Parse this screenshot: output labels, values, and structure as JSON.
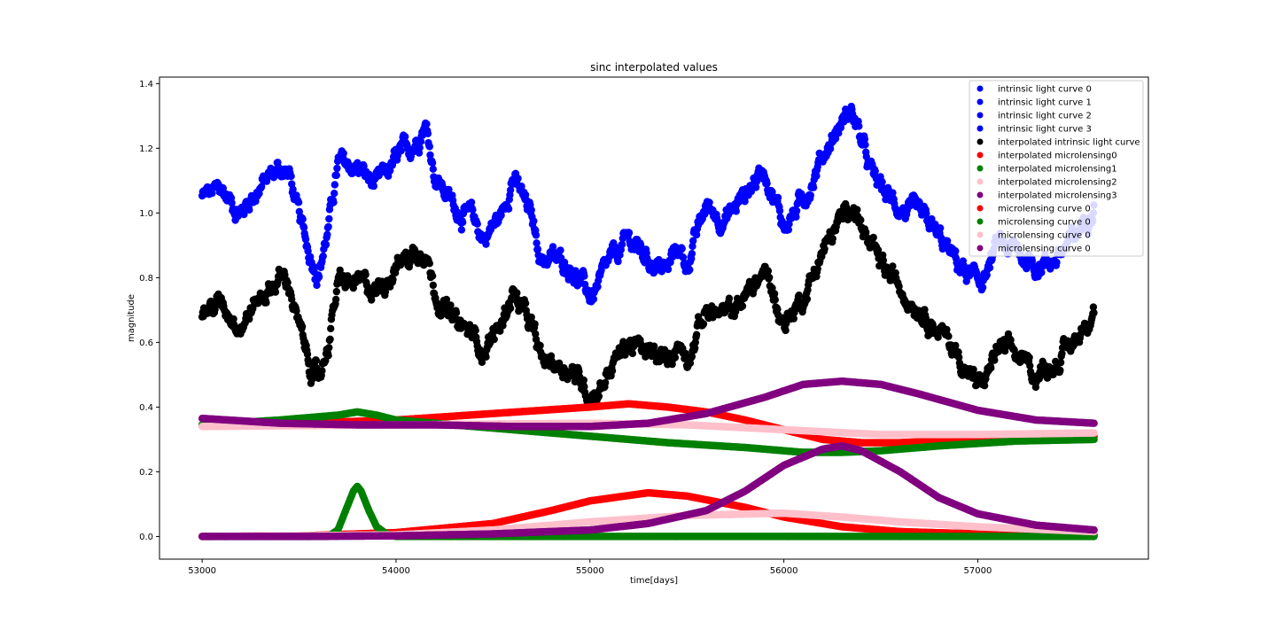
{
  "chart_data": {
    "type": "scatter",
    "title": "sinc interpolated values",
    "xlabel": "time[days]",
    "ylabel": "magnitude",
    "xlim": [
      52780,
      57880
    ],
    "ylim": [
      -0.07,
      1.42
    ],
    "xticks": [
      53000,
      54000,
      55000,
      56000,
      57000
    ],
    "yticks": [
      0.0,
      0.2,
      0.4,
      0.6,
      0.8,
      1.0,
      1.2,
      1.4
    ],
    "ytick_labels": [
      "0.0",
      "0.2",
      "0.4",
      "0.6",
      "0.8",
      "1.0",
      "1.2",
      "1.4"
    ],
    "grid": false,
    "legend_position": "top-right",
    "series": [
      {
        "name": "intrinsic light curve 0",
        "color": "#0000ff",
        "kind": "noisy",
        "x": [
          53000,
          53100,
          53200,
          53250,
          53300,
          53400,
          53450,
          53500,
          53550,
          53600,
          53650,
          53700,
          53800,
          53900,
          54000,
          54100,
          54150,
          54200,
          54300,
          54400,
          54450,
          54550,
          54600,
          54700,
          54750,
          54800,
          54900,
          55000,
          55050,
          55100,
          55200,
          55300,
          55400,
          55450,
          55500,
          55600,
          55700,
          55800,
          55900,
          56000,
          56100,
          56200,
          56300,
          56350,
          56450,
          56550,
          56650,
          56750,
          56850,
          56900,
          57000,
          57050,
          57100,
          57200,
          57300,
          57400,
          57500,
          57600
        ],
        "y": [
          1.05,
          1.07,
          1.0,
          1.05,
          1.08,
          1.14,
          1.12,
          0.98,
          0.88,
          0.82,
          0.95,
          1.15,
          1.14,
          1.08,
          1.16,
          1.22,
          1.29,
          1.12,
          1.02,
          0.98,
          0.92,
          1.0,
          1.12,
          0.98,
          0.86,
          0.86,
          0.84,
          0.74,
          0.78,
          0.84,
          0.92,
          0.86,
          0.82,
          0.9,
          0.84,
          1.02,
          0.98,
          1.06,
          1.14,
          0.96,
          1.04,
          1.18,
          1.28,
          1.32,
          1.12,
          1.04,
          1.0,
          0.96,
          0.88,
          0.84,
          0.78,
          0.82,
          0.9,
          0.88,
          0.84,
          0.86,
          0.92,
          1.04
        ]
      },
      {
        "name": "intrinsic light curve 1",
        "color": "#0000ff",
        "kind": "none",
        "x": [],
        "y": []
      },
      {
        "name": "intrinsic light curve 2",
        "color": "#0000ff",
        "kind": "none",
        "x": [],
        "y": []
      },
      {
        "name": "intrinsic light curve 3",
        "color": "#0000ff",
        "kind": "none",
        "x": [],
        "y": []
      },
      {
        "name": "interpolated intrinsic light curve",
        "color": "#000000",
        "kind": "noisy",
        "x": [
          53000,
          53100,
          53200,
          53250,
          53300,
          53400,
          53450,
          53500,
          53550,
          53600,
          53650,
          53700,
          53800,
          53900,
          54000,
          54100,
          54150,
          54200,
          54300,
          54400,
          54450,
          54550,
          54600,
          54700,
          54750,
          54800,
          54900,
          55000,
          55050,
          55100,
          55200,
          55300,
          55400,
          55450,
          55500,
          55600,
          55700,
          55800,
          55900,
          56000,
          56100,
          56200,
          56300,
          56350,
          56450,
          56550,
          56650,
          56750,
          56850,
          56900,
          57000,
          57050,
          57100,
          57200,
          57300,
          57400,
          57500,
          57600
        ],
        "y": [
          0.7,
          0.72,
          0.66,
          0.7,
          0.74,
          0.8,
          0.78,
          0.64,
          0.54,
          0.48,
          0.6,
          0.78,
          0.78,
          0.76,
          0.84,
          0.88,
          0.9,
          0.76,
          0.66,
          0.62,
          0.58,
          0.66,
          0.76,
          0.64,
          0.54,
          0.54,
          0.52,
          0.44,
          0.46,
          0.52,
          0.6,
          0.56,
          0.54,
          0.6,
          0.56,
          0.7,
          0.68,
          0.74,
          0.82,
          0.66,
          0.74,
          0.88,
          0.98,
          1.04,
          0.88,
          0.8,
          0.74,
          0.68,
          0.6,
          0.56,
          0.46,
          0.5,
          0.58,
          0.56,
          0.5,
          0.54,
          0.6,
          0.72
        ]
      },
      {
        "name": "interpolated microlensing0",
        "color": "#ff0000",
        "kind": "smooth",
        "x": [
          53000,
          53500,
          54000,
          54500,
          55000,
          55200,
          55400,
          55600,
          55800,
          56000,
          56200,
          56400,
          56600,
          57000,
          57600
        ],
        "y": [
          0.345,
          0.35,
          0.36,
          0.38,
          0.4,
          0.41,
          0.4,
          0.385,
          0.36,
          0.33,
          0.3,
          0.29,
          0.29,
          0.3,
          0.31
        ]
      },
      {
        "name": "interpolated microlensing1",
        "color": "#008000",
        "kind": "smooth",
        "x": [
          53000,
          53400,
          53700,
          53800,
          53900,
          54000,
          54300,
          54600,
          55000,
          55400,
          55800,
          56100,
          56300,
          56500,
          56800,
          57200,
          57600
        ],
        "y": [
          0.345,
          0.36,
          0.375,
          0.385,
          0.375,
          0.36,
          0.345,
          0.33,
          0.31,
          0.29,
          0.275,
          0.26,
          0.26,
          0.265,
          0.28,
          0.295,
          0.3
        ]
      },
      {
        "name": "interpolated microlensing2",
        "color": "#ffc0cb",
        "kind": "smooth",
        "x": [
          53000,
          54000,
          55000,
          55500,
          56000,
          56500,
          57000,
          57600
        ],
        "y": [
          0.34,
          0.345,
          0.35,
          0.345,
          0.33,
          0.315,
          0.315,
          0.32
        ]
      },
      {
        "name": "interpolated microlensing3",
        "color": "#800080",
        "kind": "smooth",
        "x": [
          53000,
          53400,
          53800,
          54200,
          54600,
          55000,
          55300,
          55600,
          55900,
          56100,
          56300,
          56500,
          56700,
          57000,
          57300,
          57600
        ],
        "y": [
          0.365,
          0.35,
          0.345,
          0.345,
          0.34,
          0.34,
          0.35,
          0.38,
          0.43,
          0.47,
          0.48,
          0.47,
          0.44,
          0.39,
          0.36,
          0.35
        ]
      },
      {
        "name": "microlensing curve 0",
        "color": "#ff0000",
        "kind": "smooth",
        "x": [
          53000,
          53500,
          54000,
          54500,
          54800,
          55000,
          55300,
          55500,
          55800,
          56000,
          56300,
          56600,
          57000,
          57600
        ],
        "y": [
          0.0,
          0.002,
          0.012,
          0.04,
          0.08,
          0.11,
          0.135,
          0.125,
          0.09,
          0.06,
          0.03,
          0.015,
          0.008,
          0.005
        ]
      },
      {
        "name": "microlensing curve 0",
        "color": "#008000",
        "kind": "smooth",
        "x": [
          53000,
          53650,
          53700,
          53740,
          53780,
          53800,
          53820,
          53860,
          53900,
          53950,
          54000,
          54500,
          55000,
          56000,
          57000,
          57600
        ],
        "y": [
          0.0,
          0.0,
          0.02,
          0.08,
          0.14,
          0.155,
          0.14,
          0.08,
          0.03,
          0.008,
          0.0,
          0.0,
          0.0,
          0.0,
          0.0,
          0.0
        ]
      },
      {
        "name": "microlensing curve 0",
        "color": "#ffc0cb",
        "kind": "smooth",
        "x": [
          53000,
          54000,
          54500,
          55000,
          55500,
          56000,
          56300,
          56600,
          57000,
          57600
        ],
        "y": [
          0.0,
          0.005,
          0.02,
          0.045,
          0.065,
          0.072,
          0.06,
          0.045,
          0.03,
          0.015
        ]
      },
      {
        "name": "microlensing curve 0",
        "color": "#800080",
        "kind": "smooth",
        "x": [
          53000,
          53500,
          54000,
          54500,
          55000,
          55300,
          55600,
          55800,
          56000,
          56200,
          56300,
          56400,
          56600,
          56800,
          57000,
          57300,
          57600
        ],
        "y": [
          0.0,
          0.0,
          0.002,
          0.008,
          0.02,
          0.04,
          0.08,
          0.14,
          0.22,
          0.27,
          0.28,
          0.265,
          0.2,
          0.12,
          0.07,
          0.035,
          0.02
        ]
      }
    ]
  }
}
